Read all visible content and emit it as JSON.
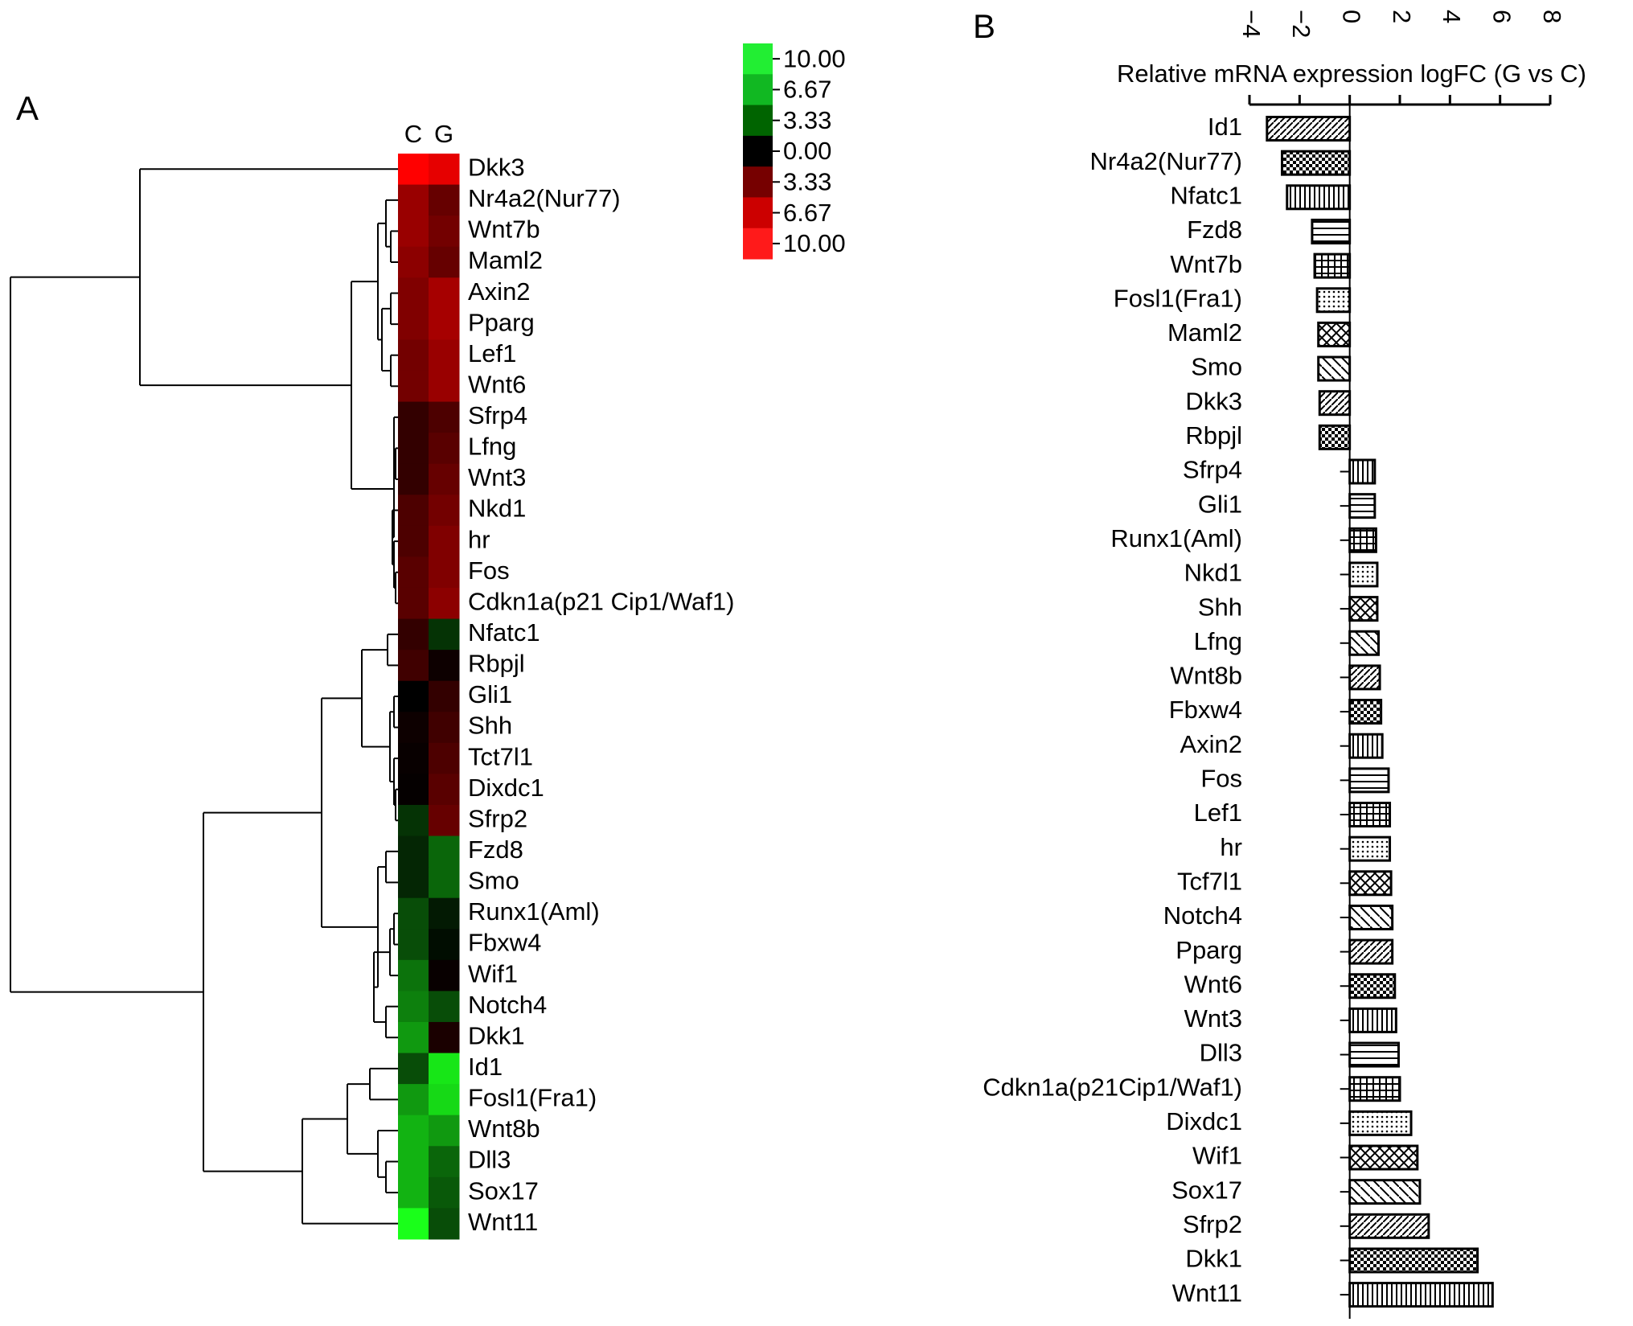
{
  "chart_data": [
    {
      "type": "heatmap",
      "panel": "A",
      "columns": [
        "C",
        "G"
      ],
      "rows": [
        "Dkk3",
        "Nr4a2(Nur77)",
        "Wnt7b",
        "Maml2",
        "Axin2",
        "Pparg",
        "Lef1",
        "Wnt6",
        "Sfrp4",
        "Lfng",
        "Wnt3",
        "Nkd1",
        "hr",
        "Fos",
        "Cdkn1a(p21 Cip1/Waf1)",
        "Nfatc1",
        "Rbpjl",
        "Gli1",
        "Shh",
        "Tct7l1",
        "Dixdc1",
        "Sfrp2",
        "Fzd8",
        "Smo",
        "Runx1(Aml)",
        "Fbxw4",
        "Wif1",
        "Notch4",
        "Dkk1",
        "Id1",
        "Fosl1(Fra1)",
        "Wnt8b",
        "Dll3",
        "Sox17",
        "Wnt11"
      ],
      "values": [
        [
          10,
          9
        ],
        [
          6,
          4
        ],
        [
          6,
          4.5
        ],
        [
          5.5,
          4
        ],
        [
          5,
          6.5
        ],
        [
          5,
          6.5
        ],
        [
          4.5,
          6
        ],
        [
          4.5,
          6
        ],
        [
          2,
          3
        ],
        [
          2,
          3.5
        ],
        [
          2,
          4
        ],
        [
          3,
          4.5
        ],
        [
          3,
          5
        ],
        [
          3.5,
          5
        ],
        [
          3.5,
          5.5
        ],
        [
          2,
          -2
        ],
        [
          2.5,
          0.5
        ],
        [
          0,
          2
        ],
        [
          0.5,
          2.5
        ],
        [
          0.3,
          3
        ],
        [
          0.2,
          3.5
        ],
        [
          -2,
          4
        ],
        [
          -1.5,
          -4
        ],
        [
          -1.5,
          -4
        ],
        [
          -3,
          -1
        ],
        [
          -3,
          -0.5
        ],
        [
          -4.5,
          0.3
        ],
        [
          -5,
          -3
        ],
        [
          -6,
          1
        ],
        [
          -3,
          -9
        ],
        [
          -6,
          -8.5
        ],
        [
          -7,
          -6
        ],
        [
          -7,
          -4
        ],
        [
          -7,
          -3.5
        ],
        [
          -10,
          -3
        ]
      ],
      "zlim": [
        -10,
        10
      ],
      "colormap": {
        "negative": "#1aff1a",
        "zero": "#000000",
        "positive": "#ff0000"
      },
      "colorbar": {
        "labels": [
          "10.00",
          "6.67",
          "3.33",
          "0.00",
          "3.33",
          "6.67",
          "10.00"
        ],
        "colors": [
          "#22ee33",
          "#11b822",
          "#006400",
          "#000000",
          "#760000",
          "#cc0000",
          "#ff1a1a"
        ]
      }
    },
    {
      "type": "bar",
      "panel": "B",
      "orientation": "horizontal",
      "xlabel": "Relative mRNA expression logFC (G vs C)",
      "categories": [
        "Id1",
        "Nr4a2(Nur77)",
        "Nfatc1",
        "Fzd8",
        "Wnt7b",
        "Fosl1(Fra1)",
        "Maml2",
        "Smo",
        "Dkk3",
        "Rbpjl",
        "Sfrp4",
        "Gli1",
        "Runx1(Aml)",
        "Nkd1",
        "Shh",
        "Lfng",
        "Wnt8b",
        "Fbxw4",
        "Axin2",
        "Fos",
        "Lef1",
        "hr",
        "Tcf7l1",
        "Notch4",
        "Pparg",
        "Wnt6",
        "Wnt3",
        "Dll3",
        "Cdkn1a(p21Cip1/Waf1)",
        "Dixdc1",
        "Wif1",
        "Sox17",
        "Sfrp2",
        "Dkk1",
        "Wnt11"
      ],
      "values": [
        -3.3,
        -2.7,
        -2.5,
        -1.5,
        -1.4,
        -1.3,
        -1.25,
        -1.25,
        -1.2,
        -1.2,
        1.0,
        1.0,
        1.05,
        1.1,
        1.1,
        1.15,
        1.2,
        1.25,
        1.3,
        1.55,
        1.6,
        1.6,
        1.65,
        1.7,
        1.7,
        1.8,
        1.85,
        1.95,
        2.0,
        2.45,
        2.7,
        2.8,
        3.15,
        5.1,
        5.7
      ],
      "color": "#000000",
      "xlim": [
        -4,
        8
      ],
      "xticks": [
        {
          "value": -4,
          "label": "−4"
        },
        {
          "value": -2,
          "label": "−2"
        },
        0,
        2,
        4,
        6,
        8
      ]
    }
  ]
}
